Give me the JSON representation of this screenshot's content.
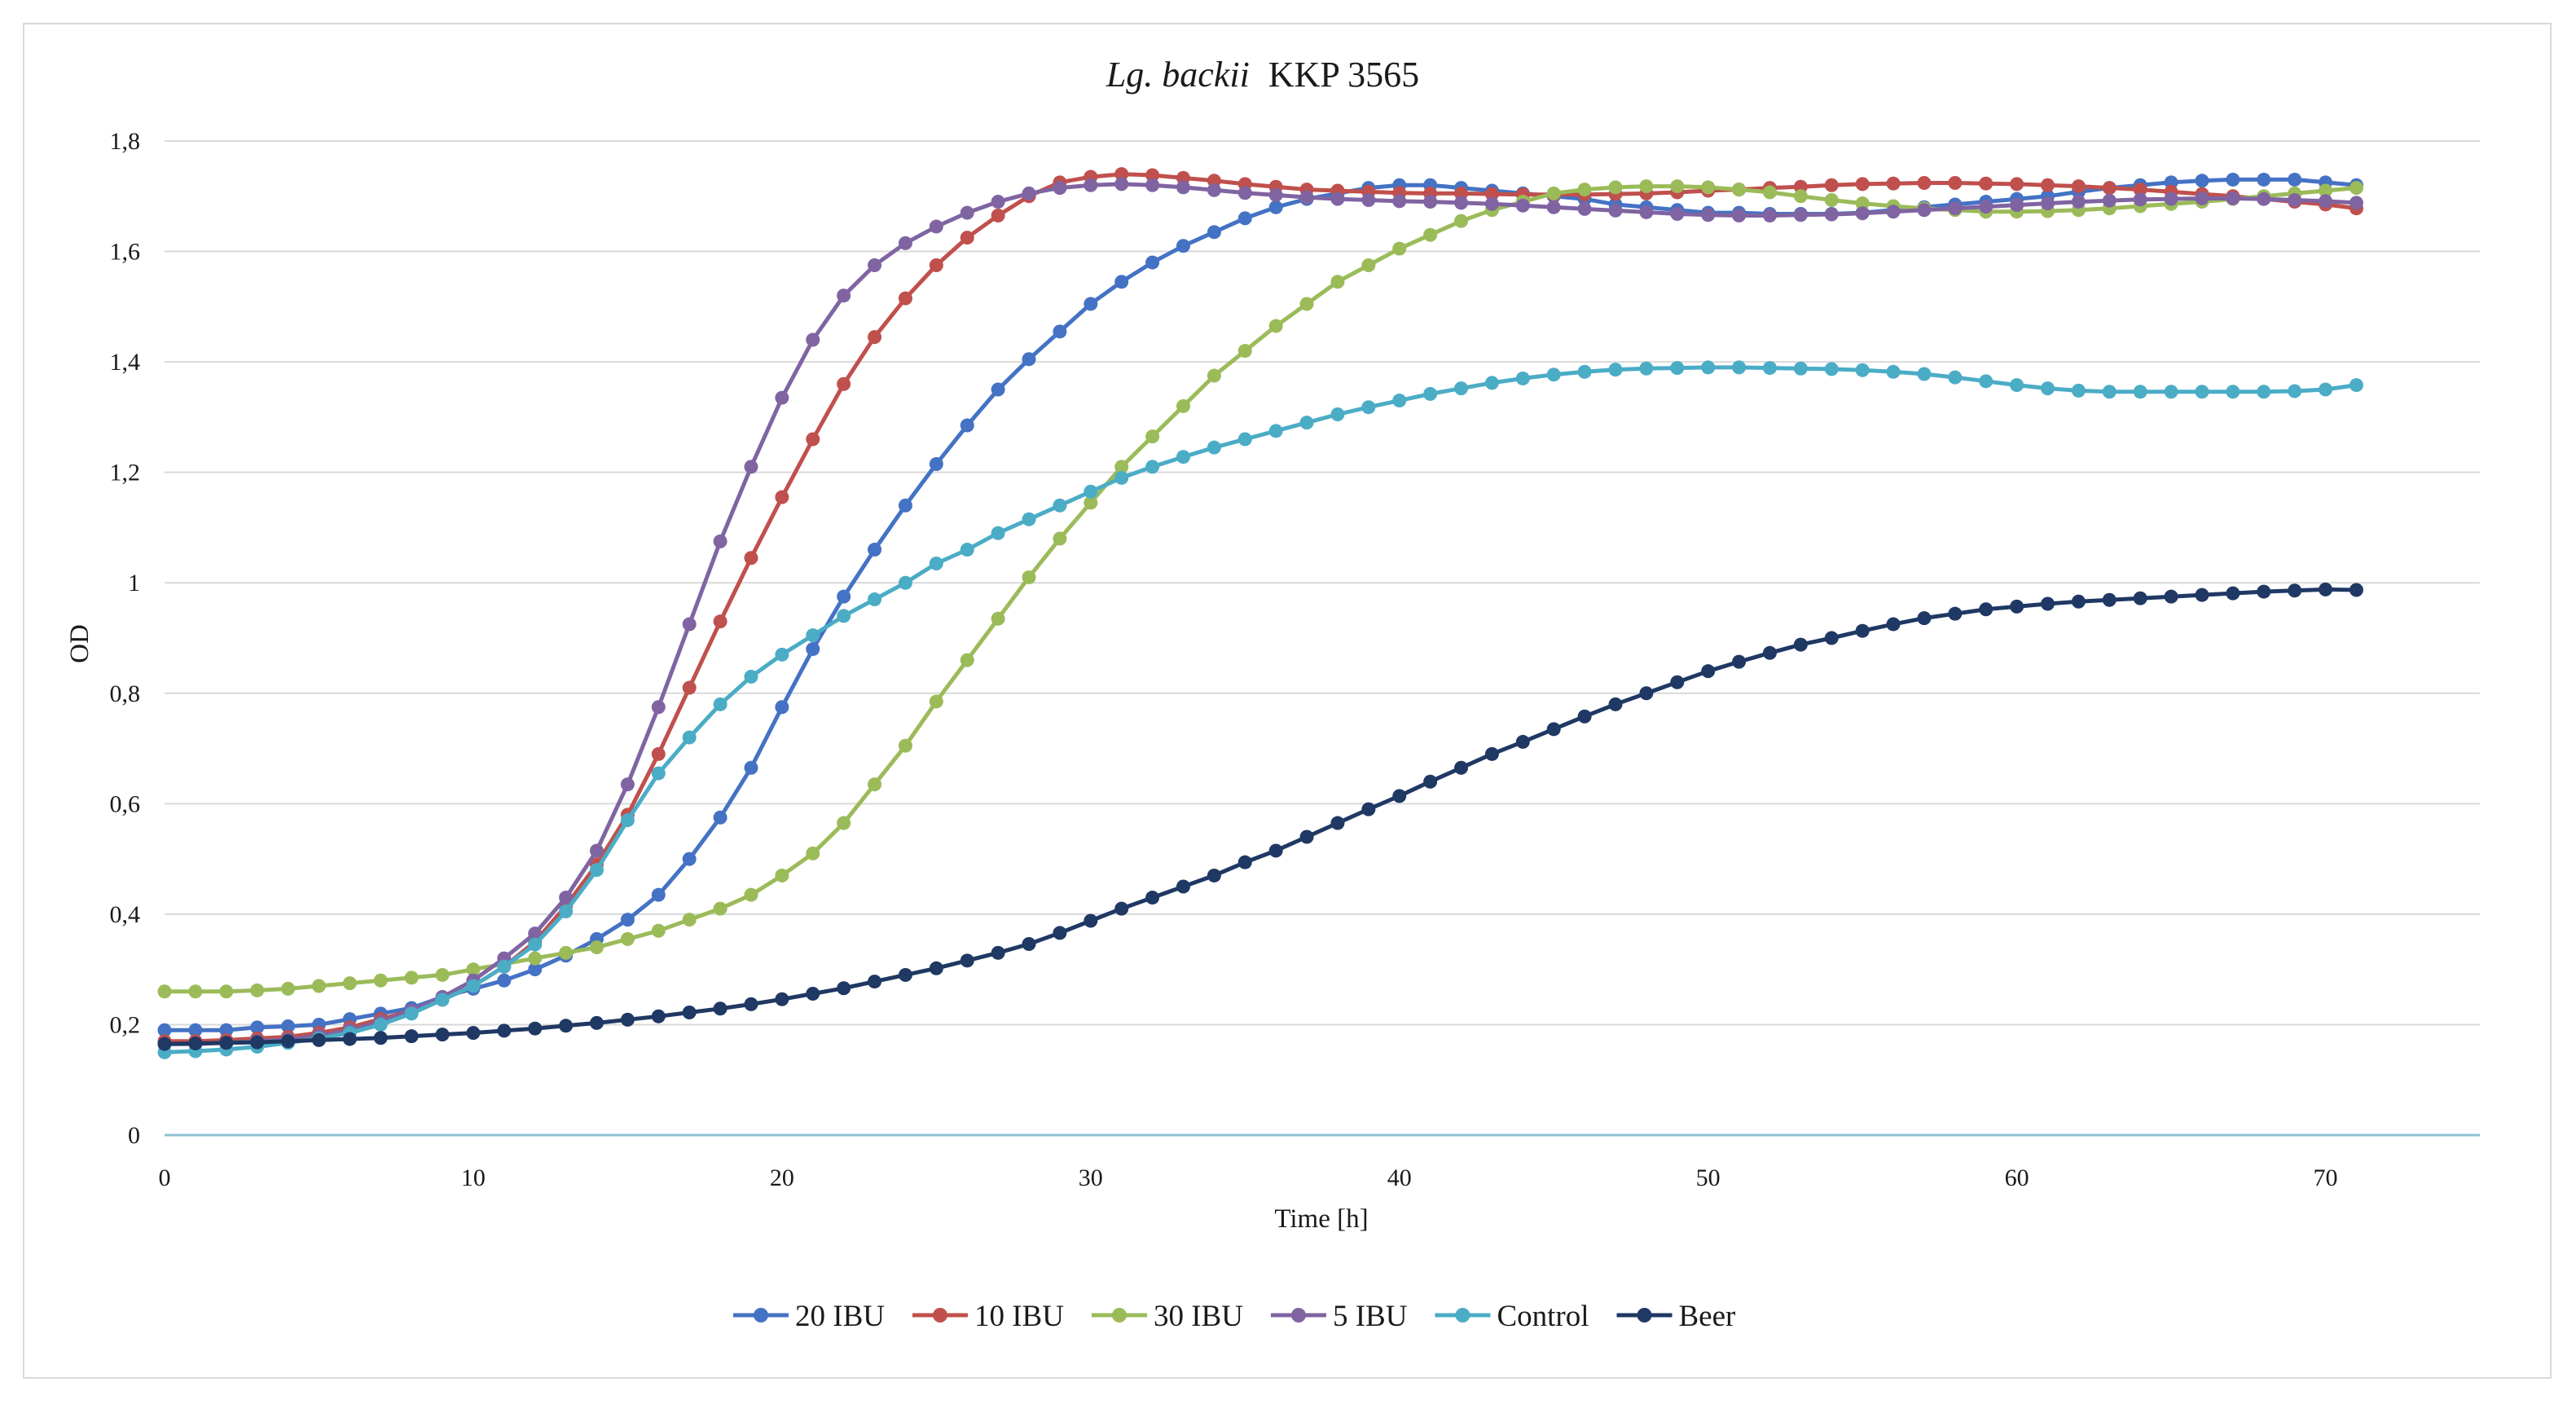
{
  "chart_data": {
    "type": "line",
    "title_italic": "Lg. backii",
    "title_rest": "KKP 3565",
    "xlabel": "Time [h]",
    "ylabel": "OD",
    "xlim": [
      0,
      75
    ],
    "ylim": [
      0,
      1.8
    ],
    "x_ticks": [
      0,
      10,
      20,
      30,
      40,
      50,
      60,
      70
    ],
    "y_ticks": [
      0,
      0.2,
      0.4,
      0.6,
      0.8,
      1.0,
      1.2,
      1.4,
      1.6,
      1.8
    ],
    "y_tick_labels": [
      "0",
      "0,2",
      "0,4",
      "0,6",
      "0,8",
      "1",
      "1,2",
      "1,4",
      "1,6",
      "1,8"
    ],
    "grid": "horizontal",
    "legend_position": "bottom",
    "x": [
      0,
      1,
      2,
      3,
      4,
      5,
      6,
      7,
      8,
      9,
      10,
      11,
      12,
      13,
      14,
      15,
      16,
      17,
      18,
      19,
      20,
      21,
      22,
      23,
      24,
      25,
      26,
      27,
      28,
      29,
      30,
      31,
      32,
      33,
      34,
      35,
      36,
      37,
      38,
      39,
      40,
      41,
      42,
      43,
      44,
      45,
      46,
      47,
      48,
      49,
      50,
      51,
      52,
      53,
      54,
      55,
      56,
      57,
      58,
      59,
      60,
      61,
      62,
      63,
      64,
      65,
      66,
      67,
      68,
      69,
      70,
      71
    ],
    "series": [
      {
        "name": "20 IBU",
        "color": "#4472C4",
        "values": [
          0.19,
          0.19,
          0.19,
          0.195,
          0.197,
          0.2,
          0.21,
          0.22,
          0.23,
          0.25,
          0.265,
          0.28,
          0.3,
          0.325,
          0.355,
          0.39,
          0.435,
          0.5,
          0.575,
          0.665,
          0.775,
          0.88,
          0.975,
          1.06,
          1.14,
          1.215,
          1.285,
          1.35,
          1.405,
          1.455,
          1.505,
          1.545,
          1.58,
          1.61,
          1.635,
          1.66,
          1.68,
          1.695,
          1.705,
          1.715,
          1.72,
          1.72,
          1.715,
          1.71,
          1.705,
          1.7,
          1.695,
          1.685,
          1.68,
          1.675,
          1.67,
          1.67,
          1.668,
          1.668,
          1.668,
          1.67,
          1.675,
          1.68,
          1.685,
          1.69,
          1.695,
          1.7,
          1.708,
          1.715,
          1.72,
          1.725,
          1.728,
          1.73,
          1.73,
          1.73,
          1.725,
          1.72
        ]
      },
      {
        "name": "10 IBU",
        "color": "#C0504D",
        "values": [
          0.17,
          0.17,
          0.172,
          0.175,
          0.178,
          0.185,
          0.195,
          0.21,
          0.225,
          0.245,
          0.27,
          0.305,
          0.35,
          0.415,
          0.49,
          0.58,
          0.69,
          0.81,
          0.93,
          1.045,
          1.155,
          1.26,
          1.36,
          1.445,
          1.515,
          1.575,
          1.625,
          1.665,
          1.7,
          1.725,
          1.735,
          1.74,
          1.738,
          1.733,
          1.728,
          1.722,
          1.717,
          1.712,
          1.71,
          1.708,
          1.706,
          1.705,
          1.705,
          1.704,
          1.703,
          1.703,
          1.703,
          1.704,
          1.705,
          1.707,
          1.71,
          1.712,
          1.715,
          1.717,
          1.72,
          1.722,
          1.723,
          1.724,
          1.724,
          1.723,
          1.722,
          1.72,
          1.718,
          1.715,
          1.712,
          1.708,
          1.704,
          1.7,
          1.695,
          1.69,
          1.685,
          1.678
        ]
      },
      {
        "name": "30 IBU",
        "color": "#9BBB59",
        "values": [
          0.26,
          0.26,
          0.26,
          0.262,
          0.265,
          0.27,
          0.275,
          0.28,
          0.285,
          0.29,
          0.3,
          0.31,
          0.32,
          0.33,
          0.34,
          0.355,
          0.37,
          0.39,
          0.41,
          0.435,
          0.47,
          0.51,
          0.565,
          0.635,
          0.705,
          0.785,
          0.86,
          0.935,
          1.01,
          1.08,
          1.145,
          1.21,
          1.265,
          1.32,
          1.375,
          1.42,
          1.465,
          1.505,
          1.545,
          1.575,
          1.605,
          1.63,
          1.655,
          1.675,
          1.69,
          1.705,
          1.712,
          1.716,
          1.718,
          1.718,
          1.716,
          1.712,
          1.707,
          1.7,
          1.693,
          1.687,
          1.682,
          1.678,
          1.675,
          1.672,
          1.672,
          1.673,
          1.675,
          1.678,
          1.682,
          1.686,
          1.69,
          1.695,
          1.7,
          1.705,
          1.71,
          1.715
        ]
      },
      {
        "name": "5 IBU",
        "color": "#8064A2",
        "values": [
          0.165,
          0.165,
          0.167,
          0.17,
          0.173,
          0.18,
          0.19,
          0.205,
          0.225,
          0.25,
          0.28,
          0.32,
          0.365,
          0.43,
          0.515,
          0.635,
          0.775,
          0.925,
          1.075,
          1.21,
          1.335,
          1.44,
          1.52,
          1.575,
          1.615,
          1.645,
          1.67,
          1.69,
          1.705,
          1.715,
          1.72,
          1.722,
          1.72,
          1.716,
          1.711,
          1.706,
          1.702,
          1.698,
          1.695,
          1.693,
          1.691,
          1.69,
          1.688,
          1.686,
          1.683,
          1.68,
          1.677,
          1.674,
          1.671,
          1.668,
          1.666,
          1.665,
          1.665,
          1.666,
          1.667,
          1.669,
          1.672,
          1.675,
          1.678,
          1.681,
          1.684,
          1.687,
          1.69,
          1.692,
          1.694,
          1.695,
          1.696,
          1.696,
          1.695,
          1.693,
          1.691,
          1.688
        ]
      },
      {
        "name": "Control",
        "color": "#4BACC6",
        "values": [
          0.15,
          0.152,
          0.155,
          0.16,
          0.167,
          0.175,
          0.185,
          0.2,
          0.22,
          0.245,
          0.27,
          0.305,
          0.345,
          0.405,
          0.48,
          0.57,
          0.655,
          0.72,
          0.78,
          0.83,
          0.87,
          0.905,
          0.94,
          0.97,
          1.0,
          1.035,
          1.06,
          1.09,
          1.115,
          1.14,
          1.165,
          1.19,
          1.21,
          1.228,
          1.245,
          1.26,
          1.275,
          1.29,
          1.305,
          1.318,
          1.33,
          1.342,
          1.352,
          1.362,
          1.37,
          1.377,
          1.382,
          1.386,
          1.388,
          1.389,
          1.39,
          1.39,
          1.389,
          1.388,
          1.387,
          1.385,
          1.382,
          1.378,
          1.372,
          1.365,
          1.358,
          1.352,
          1.348,
          1.346,
          1.346,
          1.346,
          1.346,
          1.346,
          1.346,
          1.347,
          1.35,
          1.358
        ]
      },
      {
        "name": "Beer",
        "color": "#1F3864",
        "values": [
          0.165,
          0.166,
          0.167,
          0.168,
          0.17,
          0.172,
          0.174,
          0.176,
          0.179,
          0.182,
          0.185,
          0.189,
          0.193,
          0.198,
          0.203,
          0.209,
          0.215,
          0.222,
          0.229,
          0.237,
          0.246,
          0.256,
          0.266,
          0.278,
          0.29,
          0.302,
          0.316,
          0.33,
          0.346,
          0.366,
          0.388,
          0.41,
          0.43,
          0.45,
          0.47,
          0.494,
          0.515,
          0.54,
          0.565,
          0.59,
          0.614,
          0.64,
          0.665,
          0.69,
          0.712,
          0.735,
          0.758,
          0.78,
          0.8,
          0.82,
          0.84,
          0.857,
          0.873,
          0.888,
          0.9,
          0.913,
          0.925,
          0.936,
          0.944,
          0.952,
          0.957,
          0.962,
          0.966,
          0.969,
          0.972,
          0.975,
          0.978,
          0.981,
          0.984,
          0.986,
          0.988,
          0.987
        ]
      }
    ]
  }
}
